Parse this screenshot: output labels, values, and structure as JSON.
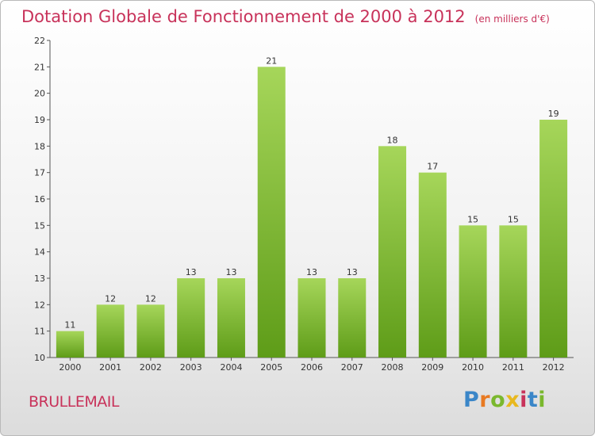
{
  "header": {
    "title": "Dotation Globale de Fonctionnement de 2000 à 2012",
    "subtitle": "(en milliers d'€)"
  },
  "commune": "BRULLEMAIL",
  "brand": {
    "letters": [
      "P",
      "r",
      "o",
      "x",
      "i",
      "t",
      "i"
    ],
    "colors": [
      "#3a86c8",
      "#e87a22",
      "#7ab82e",
      "#e8b81e",
      "#c8325a",
      "#3a86c8",
      "#7ab82e"
    ]
  },
  "colors": {
    "bar_top": "#a6d65a",
    "bar_bottom": "#5e9c18",
    "text": "#c8325a"
  },
  "chart_data": {
    "type": "bar",
    "categories": [
      "2000",
      "2001",
      "2002",
      "2003",
      "2004",
      "2005",
      "2006",
      "2007",
      "2008",
      "2009",
      "2010",
      "2011",
      "2012"
    ],
    "values": [
      11,
      12,
      12,
      13,
      13,
      21,
      13,
      13,
      18,
      17,
      15,
      15,
      19
    ],
    "ylim": [
      10,
      22
    ],
    "yticks": [
      10,
      11,
      12,
      13,
      14,
      15,
      16,
      17,
      18,
      19,
      20,
      21,
      22
    ],
    "grid": false,
    "legend": "none"
  }
}
